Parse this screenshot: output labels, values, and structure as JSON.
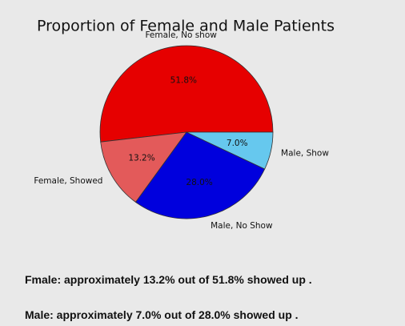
{
  "chart_data": {
    "type": "pie",
    "title": "Proportion of Female and Male Patients",
    "categories": [
      "Female, No show",
      "Female, Showed",
      "Male, No Show",
      "Male, Show"
    ],
    "values": [
      51.8,
      13.2,
      28.0,
      7.0
    ],
    "value_labels": [
      "51.8%",
      "13.2%",
      "28.0%",
      "7.0%"
    ],
    "colors": [
      "#e60000",
      "#e35a5a",
      "#0000dd",
      "#66c8ee"
    ]
  },
  "notes": [
    "Fmale: approximately 13.2% out of 51.8% showed up .",
    "Male: approximately 7.0% out of 28.0% showed up ."
  ]
}
